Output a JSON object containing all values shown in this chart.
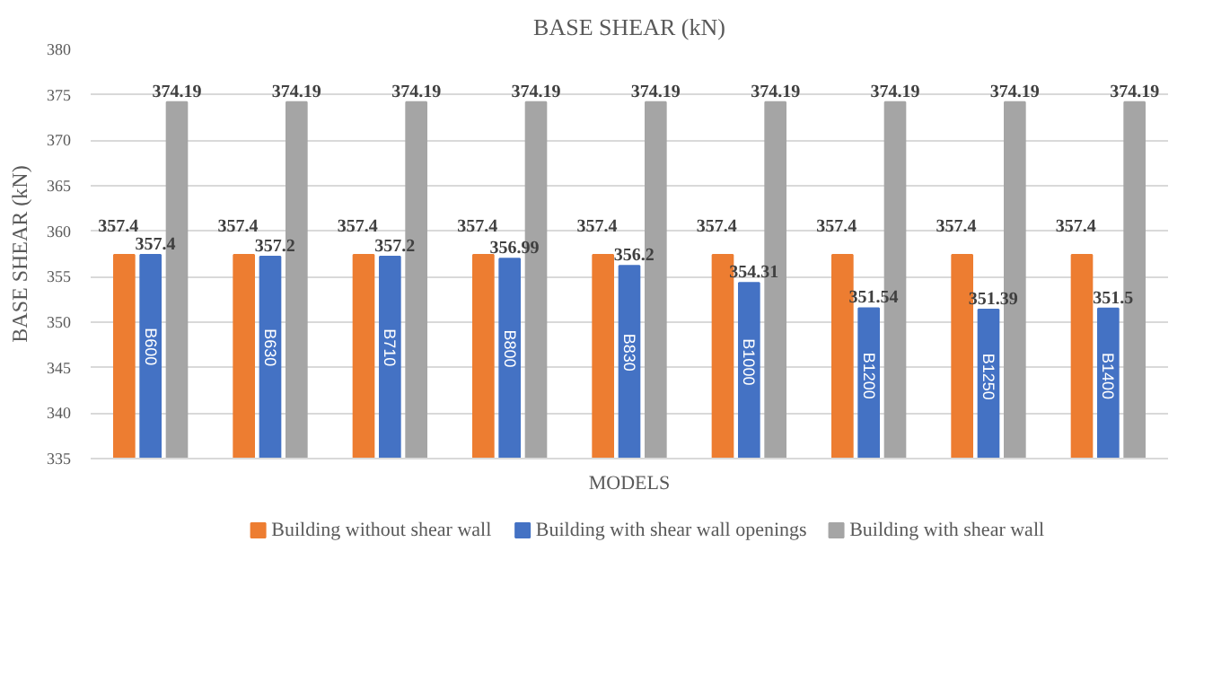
{
  "chart_data": {
    "type": "bar",
    "title": "BASE SHEAR (kN)",
    "xlabel": "MODELS",
    "ylabel": "BASE SHEAR (kN)",
    "categories": [
      "B600",
      "B630",
      "B710",
      "B800",
      "B830",
      "B1000",
      "B1200",
      "B1250",
      "B1400"
    ],
    "series": [
      {
        "name": "Building without shear wall",
        "color": "#ed7d31",
        "values": [
          357.4,
          357.4,
          357.4,
          357.4,
          357.4,
          357.4,
          357.4,
          357.4,
          357.4
        ]
      },
      {
        "name": "Building with shear wall openings",
        "color": "#4472c4",
        "values": [
          357.4,
          357.2,
          357.2,
          356.99,
          356.2,
          354.31,
          351.54,
          351.39,
          351.5
        ]
      },
      {
        "name": "Building with shear wall",
        "color": "#a5a5a5",
        "values": [
          374.19,
          374.19,
          374.19,
          374.19,
          374.19,
          374.19,
          374.19,
          374.19,
          374.19
        ]
      }
    ],
    "ylim": [
      335,
      380
    ],
    "yticks": [
      335,
      340,
      345,
      350,
      355,
      360,
      365,
      370,
      375,
      380
    ],
    "grid": "y",
    "legend": "bottom",
    "data_labels": true,
    "tick_labels": "y"
  }
}
